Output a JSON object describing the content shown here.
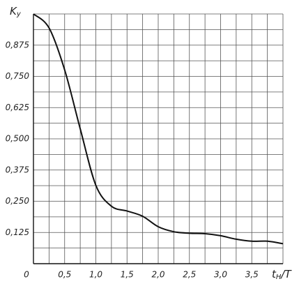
{
  "chart_data": {
    "type": "line",
    "ylabel": [
      "K",
      "y"
    ],
    "xlabel": [
      "t",
      "H",
      "/T"
    ],
    "x": [
      0,
      0.25,
      0.5,
      0.75,
      1.0,
      1.25,
      1.5,
      1.75,
      2.0,
      2.25,
      2.5,
      2.75,
      3.0,
      3.25,
      3.5,
      3.75,
      4.0
    ],
    "series": [
      {
        "color": "#111111",
        "values": [
          1.0,
          0.944,
          0.776,
          0.54,
          0.314,
          0.23,
          0.211,
          0.19,
          0.148,
          0.128,
          0.122,
          0.12,
          0.112,
          0.098,
          0.09,
          0.09,
          0.08
        ]
      }
    ],
    "xlim": [
      0,
      4.0
    ],
    "ylim": [
      0,
      1.0
    ],
    "xticks": [
      0,
      {
        "value": 0.5,
        "label": "0,5"
      },
      {
        "value": 1.0,
        "label": "1,0"
      },
      {
        "value": 1.5,
        "label": "1,5"
      },
      {
        "value": 2.0,
        "label": "2,0"
      },
      {
        "value": 2.5,
        "label": "2,5"
      },
      {
        "value": 3.0,
        "label": "3,0"
      },
      {
        "value": 3.5,
        "label": "3,5"
      }
    ],
    "yticks": [
      {
        "value": 0.125,
        "label": "0,125"
      },
      {
        "value": 0.25,
        "label": "0,250"
      },
      {
        "value": 0.375,
        "label": "0,375"
      },
      {
        "value": 0.5,
        "label": "0,500"
      },
      {
        "value": 0.625,
        "label": "0,625"
      },
      {
        "value": 0.75,
        "label": "0,750"
      },
      {
        "value": 0.875,
        "label": "0,875"
      }
    ],
    "grid": true
  }
}
